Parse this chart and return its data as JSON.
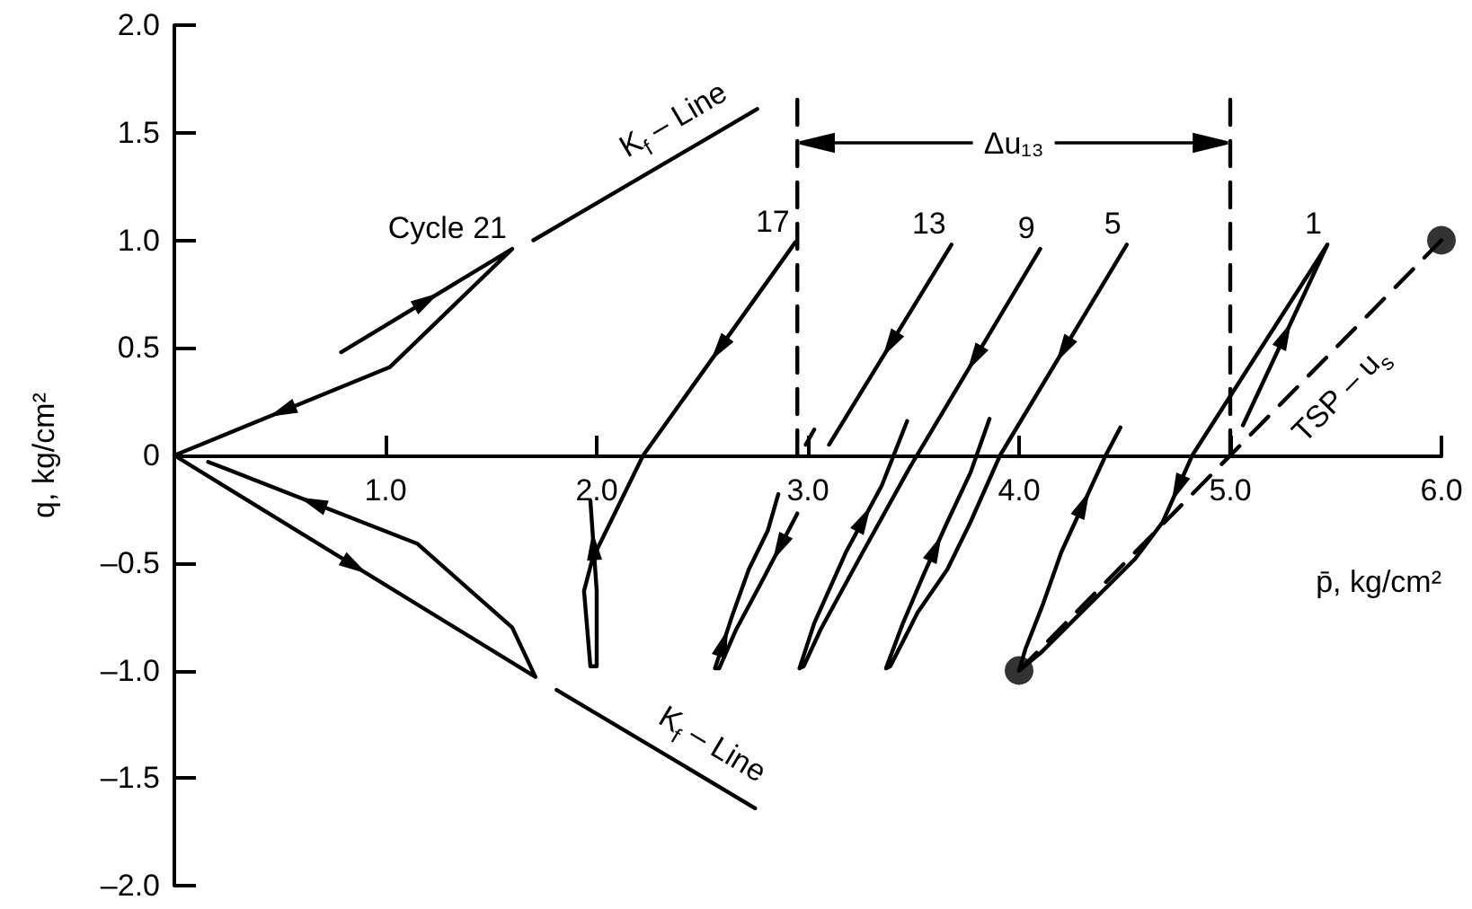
{
  "chart_data": {
    "type": "line",
    "xlabel": "p̄, kg/cm²",
    "ylabel": "q, kg/cm²",
    "xlim": [
      0,
      6
    ],
    "xticks": [
      {
        "value": 1,
        "label": "1.0"
      },
      {
        "value": 2,
        "label": "2.0"
      },
      {
        "value": 3,
        "label": "3.0"
      },
      {
        "value": 4,
        "label": "4.0"
      },
      {
        "value": 5,
        "label": "5.0"
      },
      {
        "value": 6,
        "label": "6.0"
      }
    ],
    "ylim": [
      -2,
      2
    ],
    "yticks": [
      {
        "value": -2,
        "label": "–2.0"
      },
      {
        "value": -1.5,
        "label": "–1.5"
      },
      {
        "value": -1,
        "label": "–1.0"
      },
      {
        "value": -0.5,
        "label": "–0.5"
      },
      {
        "value": 0,
        "label": "0"
      },
      {
        "value": 0.5,
        "label": "0.5"
      },
      {
        "value": 1,
        "label": "1.0"
      },
      {
        "value": 1.5,
        "label": "1.5"
      },
      {
        "value": 2,
        "label": "2.0"
      }
    ],
    "series": [
      {
        "name": "Cycle 21",
        "color": "#000000",
        "x": [
          0.79,
          1.6,
          1.02,
          0,
          1.71,
          1.6,
          1.15,
          0.16
        ],
        "values": [
          0.48,
          0.96,
          0.41,
          0,
          -1.03,
          -0.8,
          -0.41,
          -0.03
        ]
      },
      {
        "name": "17",
        "color": "#000000",
        "x": [
          2.94,
          2.22,
          1.98,
          1.94,
          1.97,
          2.0,
          2.0,
          1.97
        ],
        "values": [
          0.99,
          0,
          -0.48,
          -0.63,
          -0.98,
          -0.98,
          -0.63,
          -0.21
        ]
      },
      {
        "name": "13",
        "color": "#000000",
        "x": [
          3.68,
          3.1,
          3.02,
          2.95,
          2.78,
          2.66,
          2.58,
          2.56,
          2.64,
          2.72,
          2.81,
          2.86,
          2.93,
          2.99,
          3.03
        ],
        "values": [
          0.98,
          0.05,
          null,
          -0.27,
          -0.59,
          -0.81,
          -0.99,
          -0.99,
          -0.75,
          -0.53,
          -0.35,
          -0.18,
          null,
          0.05,
          0.12
        ]
      },
      {
        "name": "9",
        "color": "#000000",
        "x": [
          4.1,
          3.48,
          3.26,
          3.06,
          2.98,
          2.96,
          3.03,
          3.18,
          3.35,
          3.47
        ],
        "values": [
          0.96,
          -0.06,
          -0.45,
          -0.81,
          -0.98,
          -0.99,
          -0.78,
          -0.45,
          -0.14,
          0.16
        ]
      },
      {
        "name": "5",
        "color": "#000000",
        "x": [
          4.51,
          3.91,
          3.77,
          3.66,
          3.52,
          3.39,
          3.37,
          3.45,
          3.55,
          3.66,
          3.77,
          3.86
        ],
        "values": [
          0.98,
          0,
          -0.31,
          -0.53,
          -0.73,
          -0.98,
          -0.99,
          -0.78,
          -0.55,
          -0.31,
          -0.08,
          0.17
        ]
      },
      {
        "name": "1",
        "color": "#000000",
        "x": [
          5.06,
          5.46,
          4.82,
          4.68,
          4.55,
          4.1,
          4.0,
          4.03,
          4.11,
          4.2,
          4.41,
          4.48
        ],
        "values": [
          0.14,
          0.98,
          0,
          -0.31,
          -0.48,
          -0.92,
          -1.0,
          -0.9,
          -0.7,
          -0.45,
          0,
          0.13
        ]
      },
      {
        "name": "K$_{f}$ – Line",
        "color": "#000000",
        "x": [
          1.7,
          2.76
        ],
        "values": [
          1.0,
          1.61
        ]
      },
      {
        "name": "K$_{f}$ – Line",
        "color": "#000000",
        "x": [
          1.81,
          2.75
        ],
        "values": [
          -1.09,
          -1.64
        ]
      },
      {
        "name": "TSP – u$_{s}$",
        "color": "#000000",
        "x": [
          4.0,
          6.0
        ],
        "values": [
          -1.0,
          1.0
        ],
        "line_style": "dashed"
      },
      {
        "type": "scatter",
        "color": "#000000",
        "x": [
          4.0,
          6.0
        ],
        "values": [
          -1.0,
          1.0
        ],
        "marker": "circle"
      },
      {
        "color": "#000000",
        "x": [
          2.95,
          2.95
        ],
        "values": [
          0,
          1.69
        ],
        "line_style": "dashed"
      },
      {
        "color": "#000000",
        "x": [
          5.0,
          5.0
        ],
        "values": [
          0,
          1.69
        ],
        "line_style": "dashed"
      }
    ],
    "annotations": [
      "Δu₁₃"
    ]
  }
}
